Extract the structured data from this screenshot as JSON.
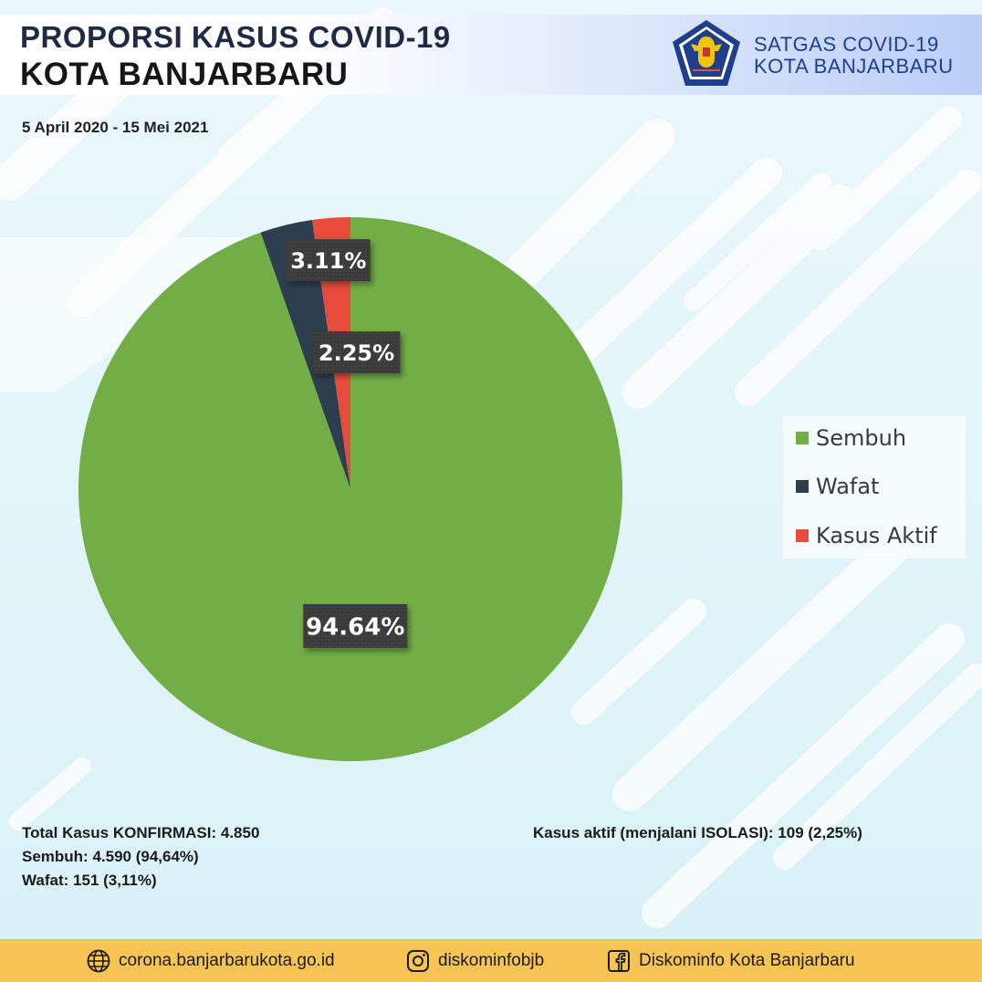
{
  "header": {
    "title_line1": "PROPORSI KASUS COVID-19",
    "title_line2": "KOTA BANJARBARU",
    "org_line1": "SATGAS COVID-19",
    "org_line2": "KOTA BANJARBARU",
    "logo_icon": "garuda-emblem-icon"
  },
  "date_range": "5 April 2020 - 15 Mei 2021",
  "chart_data": {
    "type": "pie",
    "categories": [
      "Sembuh",
      "Wafat",
      "Kasus Aktif"
    ],
    "values": [
      94.64,
      3.11,
      2.25
    ],
    "data_labels": [
      "94.64%",
      "3.11%",
      "2.25%"
    ],
    "colors": [
      "#72ad46",
      "#2d3e4f",
      "#e74b3c"
    ],
    "legend_position": "right",
    "start_angle_deg": 0,
    "direction": "counterclockwise-from-top"
  },
  "stats": {
    "total": "Total Kasus KONFIRMASI: 4.850",
    "sembuh": "Sembuh: 4.590 (94,64%)",
    "wafat": "Wafat: 151 (3,11%)",
    "aktif": "Kasus aktif (menjalani ISOLASI): 109 (2,25%)"
  },
  "footer": {
    "website": "corona.banjarbarukota.go.id",
    "instagram": "diskominfobjb",
    "facebook": "Diskominfo Kota Banjarbaru",
    "website_icon": "globe-icon",
    "instagram_icon": "instagram-icon",
    "facebook_icon": "facebook-icon",
    "background_color": "#f6c453"
  }
}
